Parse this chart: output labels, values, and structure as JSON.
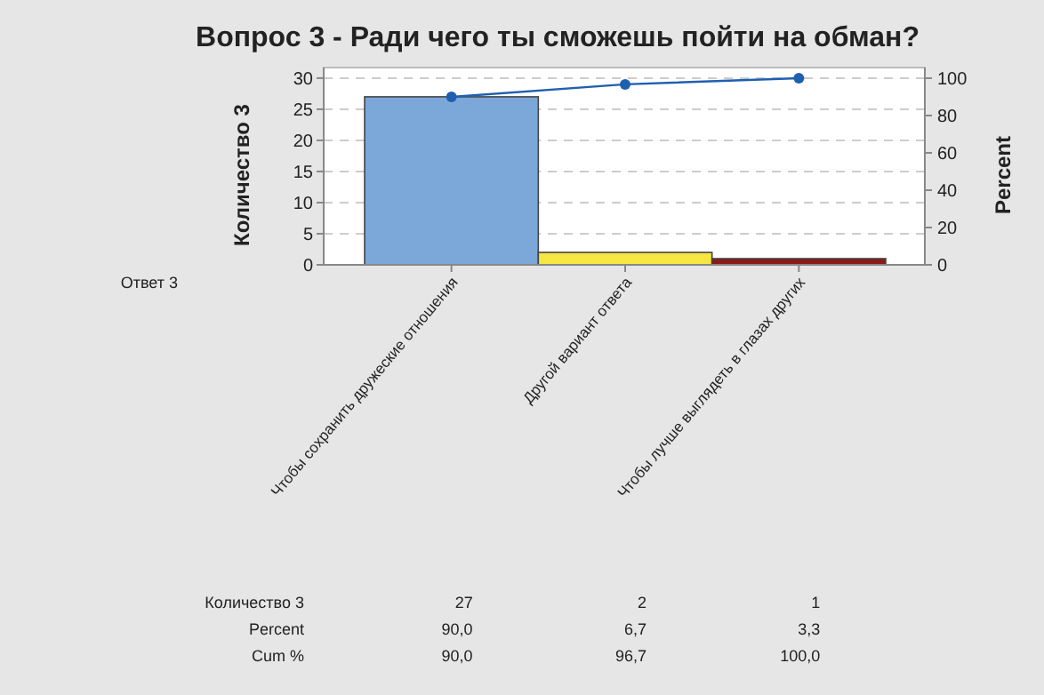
{
  "chart_data": {
    "type": "bar",
    "title": "Вопрос 3 - Ради чего ты сможешь пойти на обман?",
    "ylabel": "Количество 3",
    "y2label": "Percent",
    "categories": [
      "Чтобы сохранить дружеские отношения",
      "Другой вариант ответа",
      "Чтобы лучше выглядеть в глазах других"
    ],
    "series": [
      {
        "colors": [
          "#7ba7d9",
          "#f5e642",
          "#8b1a1a"
        ],
        "values": [
          27,
          2,
          1
        ],
        "value_labels": [
          "27",
          "2",
          "1"
        ]
      },
      {
        "type": "line",
        "axis": "y2",
        "color": "#1f5fb0",
        "values": [
          90.0,
          96.7,
          100.0
        ],
        "value_labels": [
          "90,0",
          "96,7",
          "100,0"
        ]
      }
    ],
    "annotations": [
      "Ответ 3",
      "Количество 3",
      "Percent",
      "Cum %",
      "90,0",
      "6,7",
      "3,3"
    ],
    "ylim": [
      0,
      31.7
    ],
    "yticks": [
      0,
      5,
      10,
      15,
      20,
      25,
      30
    ],
    "y2lim": [
      0,
      105.7
    ],
    "y2ticks": [
      0,
      20,
      40,
      60,
      80,
      100
    ],
    "grid": "y",
    "marker": "circle",
    "line_style": "solid",
    "data_labels": true
  }
}
